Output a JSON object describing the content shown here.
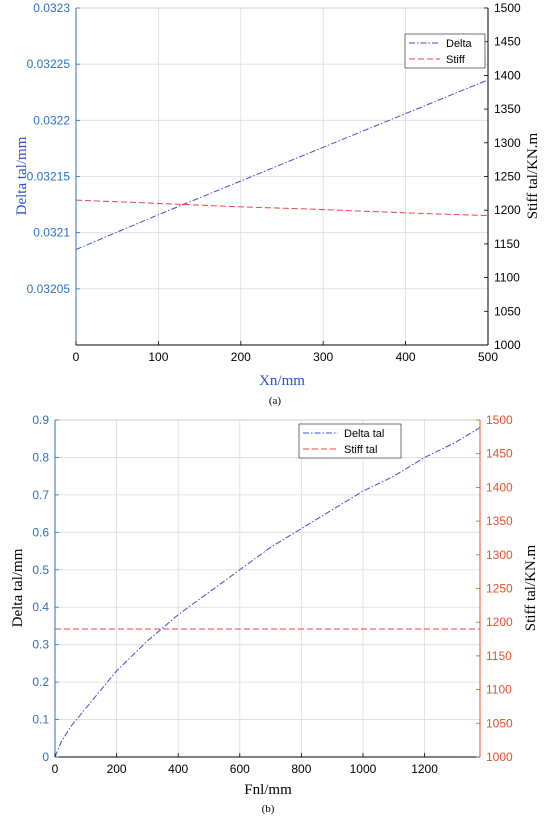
{
  "chart_data": [
    {
      "type": "line",
      "caption": "(a)",
      "xlabel": "Xn/mm",
      "ylabel_left": "Delta tal/mm",
      "ylabel_right": "Stiff tal/KN.m",
      "xlim": [
        0,
        500
      ],
      "ylim_left": [
        0.032,
        0.0323
      ],
      "ylim_right": [
        1000,
        1500
      ],
      "x_ticks": [
        "0",
        "100",
        "200",
        "300",
        "400",
        "500"
      ],
      "y_left_ticks": [
        "0.03205",
        "0.0321",
        "0.03215",
        "0.0322",
        "0.03225",
        "0.0323"
      ],
      "y_right_ticks": [
        "1000",
        "1050",
        "1100",
        "1150",
        "1200",
        "1250",
        "1300",
        "1350",
        "1400",
        "1450",
        "1500"
      ],
      "grid": true,
      "legend_position": "top-right",
      "colors": {
        "left_axis": "#2a72c2",
        "right_axis": "#000000",
        "xlabel": "#2a4fd6"
      },
      "series": [
        {
          "name": "Delta",
          "axis": "left",
          "style": "dashdot",
          "color": "#3f4fc8",
          "x": [
            0,
            100,
            200,
            300,
            400,
            500
          ],
          "y": [
            0.032085,
            0.032116,
            0.032146,
            0.032176,
            0.032206,
            0.032236
          ]
        },
        {
          "name": "Stiff",
          "axis": "right",
          "style": "dashed",
          "color": "#ee4444",
          "x": [
            0,
            100,
            200,
            300,
            400,
            500
          ],
          "y": [
            1215,
            1210,
            1205,
            1201,
            1196,
            1192
          ]
        }
      ]
    },
    {
      "type": "line",
      "caption": "(b)",
      "xlabel": "Fnl/mm",
      "ylabel_left": "Delta tal/mm",
      "ylabel_right": "Stiff tal/KN.m",
      "xlim": [
        0,
        1380
      ],
      "ylim_left": [
        0,
        0.9
      ],
      "ylim_right": [
        1000,
        1500
      ],
      "x_ticks": [
        "0",
        "200",
        "400",
        "600",
        "800",
        "1000",
        "1200"
      ],
      "y_left_ticks": [
        "0",
        "0.1",
        "0.2",
        "0.3",
        "0.4",
        "0.5",
        "0.6",
        "0.7",
        "0.8",
        "0.9"
      ],
      "y_right_ticks": [
        "1000",
        "1050",
        "1100",
        "1150",
        "1200",
        "1250",
        "1300",
        "1350",
        "1400",
        "1450",
        "1500"
      ],
      "grid": true,
      "legend_position": "top-right",
      "colors": {
        "left_axis": "#2a72c2",
        "right_axis": "#e8502a",
        "xlabel": "#000000"
      },
      "series": [
        {
          "name": "Delta tal",
          "axis": "left",
          "style": "dashdot",
          "color": "#3f4fc8",
          "x": [
            0,
            20,
            50,
            100,
            150,
            200,
            300,
            400,
            500,
            600,
            700,
            800,
            900,
            1000,
            1100,
            1200,
            1300,
            1380
          ],
          "y": [
            0,
            0.04,
            0.08,
            0.13,
            0.18,
            0.23,
            0.31,
            0.38,
            0.44,
            0.5,
            0.56,
            0.61,
            0.66,
            0.71,
            0.75,
            0.8,
            0.84,
            0.88
          ]
        },
        {
          "name": "Stiff tal",
          "axis": "right",
          "style": "dashed",
          "color": "#ee4444",
          "x": [
            0,
            1380
          ],
          "y": [
            1190,
            1190
          ]
        }
      ]
    }
  ]
}
